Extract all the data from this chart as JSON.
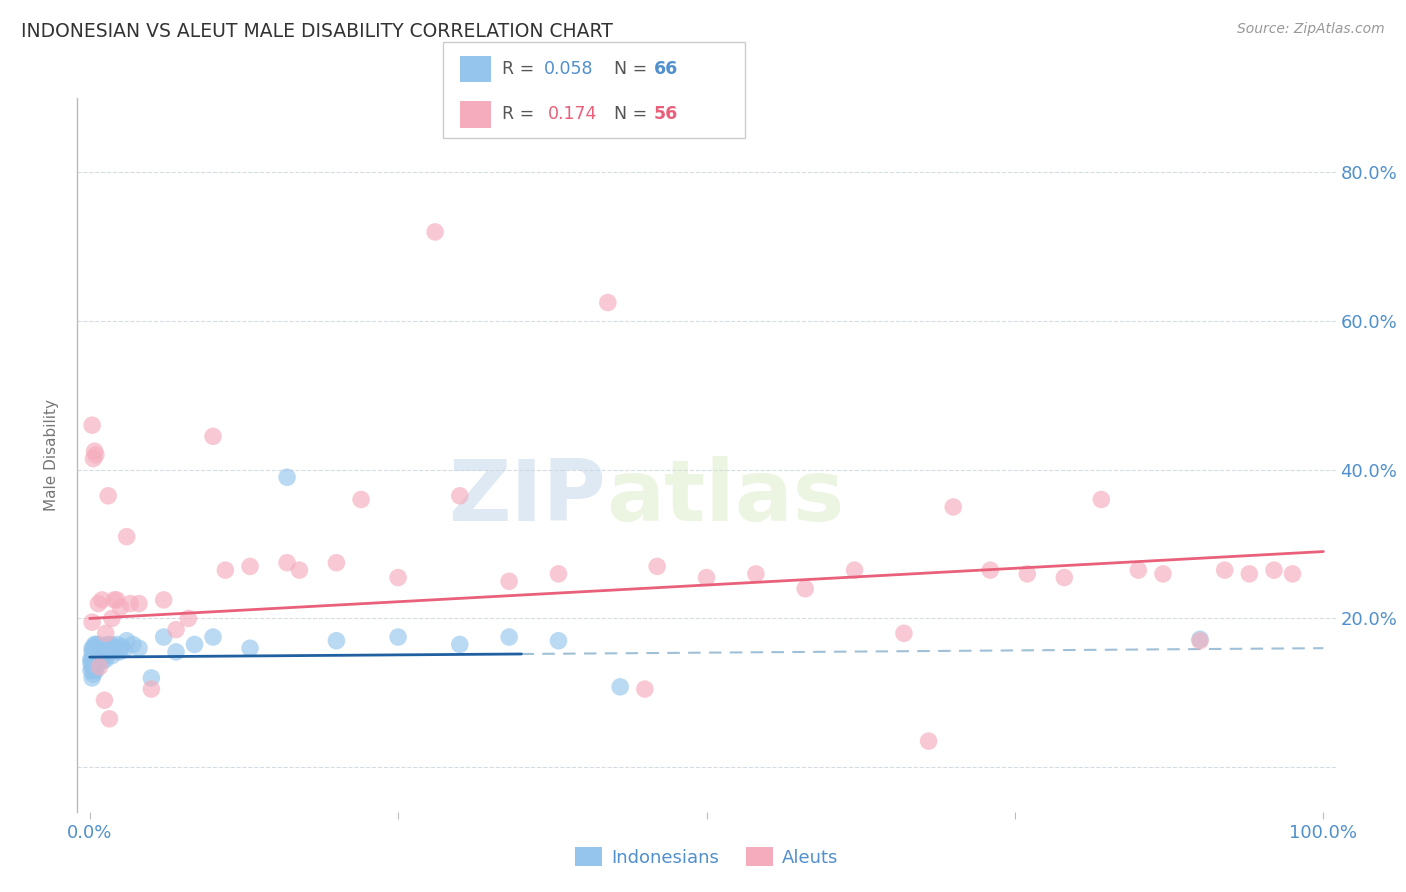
{
  "title": "INDONESIAN VS ALEUT MALE DISABILITY CORRELATION CHART",
  "source": "Source: ZipAtlas.com",
  "ylabel": "Male Disability",
  "indonesian_color": "#95C5EC",
  "aleut_color": "#F5ADBD",
  "indonesian_line_color": "#2060A0",
  "aleut_line_color": "#E8607A",
  "indonesian_dash_color": "#A0C0D8",
  "background_color": "#FFFFFF",
  "grid_color": "#D0D8E0",
  "title_color": "#333333",
  "axis_label_color": "#777777",
  "tick_label_color": "#5090CC",
  "watermark_color": "#D5E5F0",
  "xlim": [
    -0.01,
    1.01
  ],
  "ylim": [
    -0.06,
    0.9
  ],
  "indonesian_x": [
    0.001,
    0.001,
    0.001,
    0.002,
    0.002,
    0.002,
    0.002,
    0.002,
    0.003,
    0.003,
    0.003,
    0.003,
    0.003,
    0.004,
    0.004,
    0.004,
    0.004,
    0.004,
    0.005,
    0.005,
    0.005,
    0.005,
    0.005,
    0.006,
    0.006,
    0.006,
    0.007,
    0.007,
    0.007,
    0.008,
    0.008,
    0.009,
    0.009,
    0.01,
    0.01,
    0.011,
    0.011,
    0.012,
    0.013,
    0.014,
    0.015,
    0.016,
    0.017,
    0.018,
    0.02,
    0.022,
    0.024,
    0.026,
    0.028,
    0.03,
    0.035,
    0.04,
    0.05,
    0.06,
    0.07,
    0.085,
    0.1,
    0.13,
    0.16,
    0.2,
    0.25,
    0.3,
    0.34,
    0.38,
    0.9,
    0.43
  ],
  "indonesian_y": [
    0.14,
    0.145,
    0.13,
    0.155,
    0.135,
    0.12,
    0.16,
    0.145,
    0.13,
    0.15,
    0.14,
    0.16,
    0.125,
    0.15,
    0.165,
    0.135,
    0.155,
    0.145,
    0.14,
    0.155,
    0.165,
    0.13,
    0.15,
    0.148,
    0.162,
    0.138,
    0.155,
    0.145,
    0.165,
    0.15,
    0.162,
    0.148,
    0.158,
    0.142,
    0.158,
    0.15,
    0.162,
    0.155,
    0.145,
    0.165,
    0.158,
    0.155,
    0.165,
    0.15,
    0.162,
    0.165,
    0.155,
    0.162,
    0.158,
    0.17,
    0.165,
    0.16,
    0.12,
    0.175,
    0.155,
    0.165,
    0.175,
    0.16,
    0.39,
    0.17,
    0.175,
    0.165,
    0.175,
    0.17,
    0.172,
    0.108
  ],
  "aleut_x": [
    0.002,
    0.003,
    0.005,
    0.007,
    0.01,
    0.013,
    0.015,
    0.018,
    0.02,
    0.025,
    0.03,
    0.033,
    0.05,
    0.06,
    0.08,
    0.1,
    0.13,
    0.17,
    0.2,
    0.25,
    0.3,
    0.34,
    0.38,
    0.42,
    0.46,
    0.5,
    0.54,
    0.58,
    0.62,
    0.66,
    0.7,
    0.73,
    0.76,
    0.79,
    0.82,
    0.85,
    0.87,
    0.9,
    0.92,
    0.94,
    0.96,
    0.975,
    0.002,
    0.004,
    0.008,
    0.012,
    0.016,
    0.022,
    0.04,
    0.07,
    0.11,
    0.16,
    0.22,
    0.28,
    0.45,
    0.68
  ],
  "aleut_y": [
    0.195,
    0.415,
    0.42,
    0.22,
    0.225,
    0.18,
    0.365,
    0.2,
    0.225,
    0.215,
    0.31,
    0.22,
    0.105,
    0.225,
    0.2,
    0.445,
    0.27,
    0.265,
    0.275,
    0.255,
    0.365,
    0.25,
    0.26,
    0.625,
    0.27,
    0.255,
    0.26,
    0.24,
    0.265,
    0.18,
    0.35,
    0.265,
    0.26,
    0.255,
    0.36,
    0.265,
    0.26,
    0.17,
    0.265,
    0.26,
    0.265,
    0.26,
    0.46,
    0.425,
    0.135,
    0.09,
    0.065,
    0.225,
    0.22,
    0.185,
    0.265,
    0.275,
    0.36,
    0.72,
    0.105,
    0.035
  ],
  "indon_line_x": [
    0.0,
    1.0
  ],
  "indon_line_y": [
    0.148,
    0.16
  ],
  "aleut_line_x": [
    0.0,
    1.0
  ],
  "aleut_line_y": [
    0.2,
    0.29
  ],
  "dash_line_y": 0.158,
  "y_ticks": [
    0.0,
    0.2,
    0.4,
    0.6,
    0.8
  ],
  "y_tick_labels_right": [
    "",
    "20.0%",
    "40.0%",
    "60.0%",
    "80.0%"
  ],
  "x_ticks": [
    0.0,
    0.25,
    0.5,
    0.75,
    1.0
  ],
  "x_tick_labels": [
    "0.0%",
    "",
    "",
    "",
    "100.0%"
  ]
}
